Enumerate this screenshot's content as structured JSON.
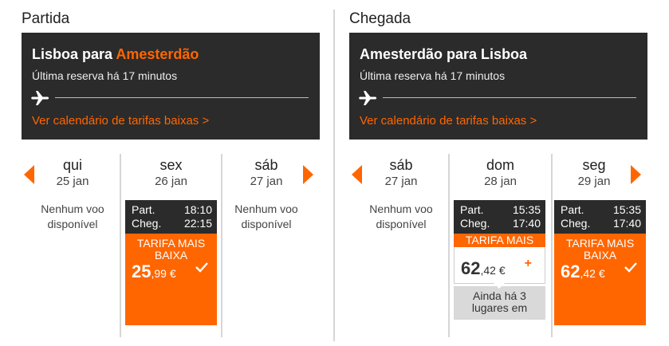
{
  "colors": {
    "accent": "#ff6600",
    "panel": "#2b2b2b",
    "seats_bg": "#d9d9d9"
  },
  "departure": {
    "section_title": "Partida",
    "route_from": "Lisboa para ",
    "route_to": "Amesterdão",
    "last_booking": "Última reserva há 17 minutos",
    "calendar_link": "Ver calendário de tarifas baixas >",
    "days": [
      {
        "name": "qui",
        "date": "25 jan",
        "no_flight": "Nenhum voo disponível"
      },
      {
        "name": "sex",
        "date": "26 jan",
        "dep_label": "Part.",
        "dep_time": "18:10",
        "arr_label": "Cheg.",
        "arr_time": "22:15",
        "fare_label": "TARIFA MAIS BAIXA",
        "price_int": "25",
        "price_dec": ",99 €",
        "selected": true
      },
      {
        "name": "sáb",
        "date": "27 jan",
        "no_flight": "Nenhum voo disponível"
      }
    ]
  },
  "return": {
    "section_title": "Chegada",
    "route": "Amesterdão para Lisboa",
    "last_booking": "Última reserva há 17 minutos",
    "calendar_link": "Ver calendário de tarifas baixas >",
    "days": [
      {
        "name": "sáb",
        "date": "27 jan",
        "no_flight": "Nenhum voo disponível"
      },
      {
        "name": "dom",
        "date": "28 jan",
        "dep_label": "Part.",
        "dep_time": "15:35",
        "arr_label": "Cheg.",
        "arr_time": "17:40",
        "fare_label": "TARIFA MAIS",
        "price_int": "62",
        "price_dec": ",42 €",
        "plus": "+",
        "seats": "Ainda há 3 lugares em"
      },
      {
        "name": "seg",
        "date": "29 jan",
        "dep_label": "Part.",
        "dep_time": "15:35",
        "arr_label": "Cheg.",
        "arr_time": "17:40",
        "fare_label": "TARIFA MAIS BAIXA",
        "price_int": "62",
        "price_dec": ",42 €",
        "selected": true
      }
    ]
  },
  "icons": {
    "plane": "plane-icon",
    "check": "check-icon",
    "prev": "arrow-left-icon",
    "next": "arrow-right-icon"
  }
}
